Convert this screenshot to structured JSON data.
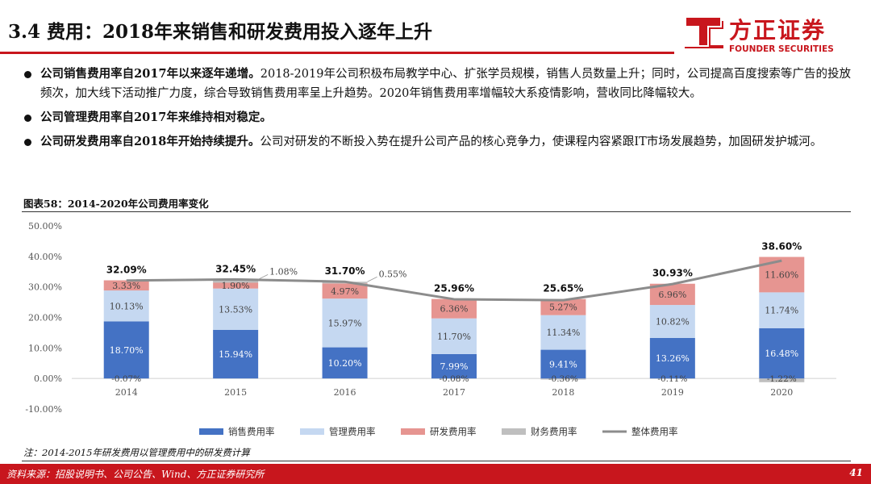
{
  "header": {
    "title": "3.4 费用：2018年来销售和研发费用投入逐年上升",
    "logo_name": "方正证券",
    "logo_sub": "FOUNDER SECURITIES"
  },
  "bullets": [
    {
      "lead": "公司销售费用率自2017年以来逐年递增。",
      "text": "2018-2019年公司积极布局教学中心、扩张学员规模，销售人员数量上升；同时，公司提高百度搜索等广告的投放频次，加大线下活动推广力度，综合导致销售费用率呈上升趋势。2020年销售费用率增幅较大系疫情影响，营收同比降幅较大。"
    },
    {
      "lead": "公司管理费用率自2017年来维持相对稳定。",
      "text": ""
    },
    {
      "lead": "公司研发费用率自2018年开始持续提升。",
      "text": "公司对研发的不断投入势在提升公司产品的核心竞争力，使课程内容紧跟IT市场发展趋势，加固研发护城河。"
    }
  ],
  "figure": {
    "title": "图表58：2014-2020年公司费用率变化"
  },
  "chart_data": {
    "type": "bar",
    "stacked": true,
    "categories": [
      "2014",
      "2015",
      "2016",
      "2017",
      "2018",
      "2019",
      "2020"
    ],
    "ylim": [
      -10,
      50
    ],
    "yticks": [
      "-10.00%",
      "0.00%",
      "10.00%",
      "20.00%",
      "30.00%",
      "40.00%",
      "50.00%"
    ],
    "ytick_values": [
      -10,
      0,
      10,
      20,
      30,
      40,
      50
    ],
    "grid": false,
    "legend_position": "bottom",
    "series": [
      {
        "name": "销售费用率",
        "color": "#4472c4",
        "values": [
          18.7,
          15.94,
          10.2,
          7.99,
          9.41,
          13.26,
          16.48
        ],
        "labels": [
          "18.70%",
          "15.94%",
          "10.20%",
          "7.99%",
          "9.41%",
          "13.26%",
          "16.48%"
        ]
      },
      {
        "name": "管理费用率",
        "color": "#c5d8f1",
        "values": [
          10.13,
          13.53,
          15.97,
          11.7,
          11.34,
          10.82,
          11.74
        ],
        "labels": [
          "10.13%",
          "13.53%",
          "15.97%",
          "11.70%",
          "11.34%",
          "10.82%",
          "11.74%"
        ]
      },
      {
        "name": "研发费用率",
        "color": "#e69591",
        "values": [
          3.33,
          1.9,
          4.97,
          6.36,
          5.27,
          6.96,
          11.6
        ],
        "labels": [
          "3.33%",
          "1.90%",
          "4.97%",
          "6.36%",
          "5.27%",
          "6.96%",
          "11.60%"
        ]
      },
      {
        "name": "财务费用率",
        "color": "#bfbfbf",
        "values": [
          -0.07,
          1.08,
          0.55,
          -0.08,
          -0.36,
          -0.11,
          -1.22
        ],
        "labels": [
          "-0.07%",
          "1.08%",
          "0.55%",
          "-0.08%",
          "-0.36%",
          "-0.11%",
          "-1.22%"
        ]
      },
      {
        "name": "整体费用率",
        "color": "#8c8c8c",
        "type": "line",
        "values": [
          32.09,
          32.45,
          31.7,
          25.96,
          25.65,
          30.93,
          38.6
        ],
        "labels": [
          "32.09%",
          "32.45%",
          "31.70%",
          "25.96%",
          "25.65%",
          "30.93%",
          "38.60%"
        ]
      }
    ]
  },
  "note": "注：2014-2015年研发费用以管理费用中的研发费计算",
  "footer": {
    "source": "资料来源：招股说明书、公司公告、Wind、方正证券研究所",
    "page": "41"
  }
}
